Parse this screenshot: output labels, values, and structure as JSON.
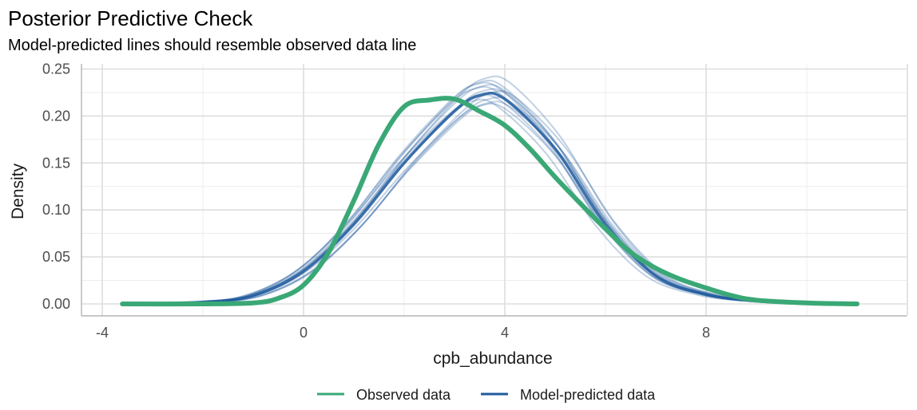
{
  "chart_data": {
    "type": "line",
    "title": "Posterior Predictive Check",
    "subtitle": "Model-predicted lines should resemble observed data line",
    "xlabel": "cpb_abundance",
    "ylabel": "Density",
    "xlim": [
      -4,
      12
    ],
    "ylim": [
      0,
      0.25
    ],
    "x_ticks": [
      -4,
      0,
      4,
      8
    ],
    "y_ticks": [
      0.0,
      0.05,
      0.1,
      0.15,
      0.2,
      0.25
    ],
    "grid": true,
    "legend_position": "bottom",
    "series": [
      {
        "name": "Observed data",
        "color": "#3aa876",
        "x": [
          -3.6,
          -2.0,
          -1.0,
          -0.5,
          0.0,
          0.5,
          1.0,
          1.5,
          2.0,
          2.5,
          3.0,
          3.5,
          4.0,
          4.5,
          5.0,
          5.5,
          6.0,
          6.5,
          7.0,
          7.5,
          8.0,
          8.5,
          9.0,
          10.0,
          11.0
        ],
        "y": [
          0.0,
          0.0,
          0.001,
          0.006,
          0.02,
          0.055,
          0.11,
          0.17,
          0.21,
          0.217,
          0.218,
          0.205,
          0.19,
          0.165,
          0.135,
          0.107,
          0.08,
          0.055,
          0.038,
          0.026,
          0.017,
          0.009,
          0.004,
          0.001,
          0.0
        ]
      },
      {
        "name": "Model-predicted data",
        "color": "#1f5a9e",
        "x": [
          -3.6,
          -2.0,
          -1.0,
          0.0,
          1.0,
          2.0,
          3.0,
          3.5,
          4.0,
          5.0,
          6.0,
          7.0,
          8.0,
          9.0,
          10.0,
          11.0
        ],
        "y": [
          0.0,
          0.002,
          0.009,
          0.035,
          0.085,
          0.15,
          0.205,
          0.222,
          0.218,
          0.165,
          0.085,
          0.03,
          0.01,
          0.003,
          0.001,
          0.0
        ]
      }
    ]
  }
}
